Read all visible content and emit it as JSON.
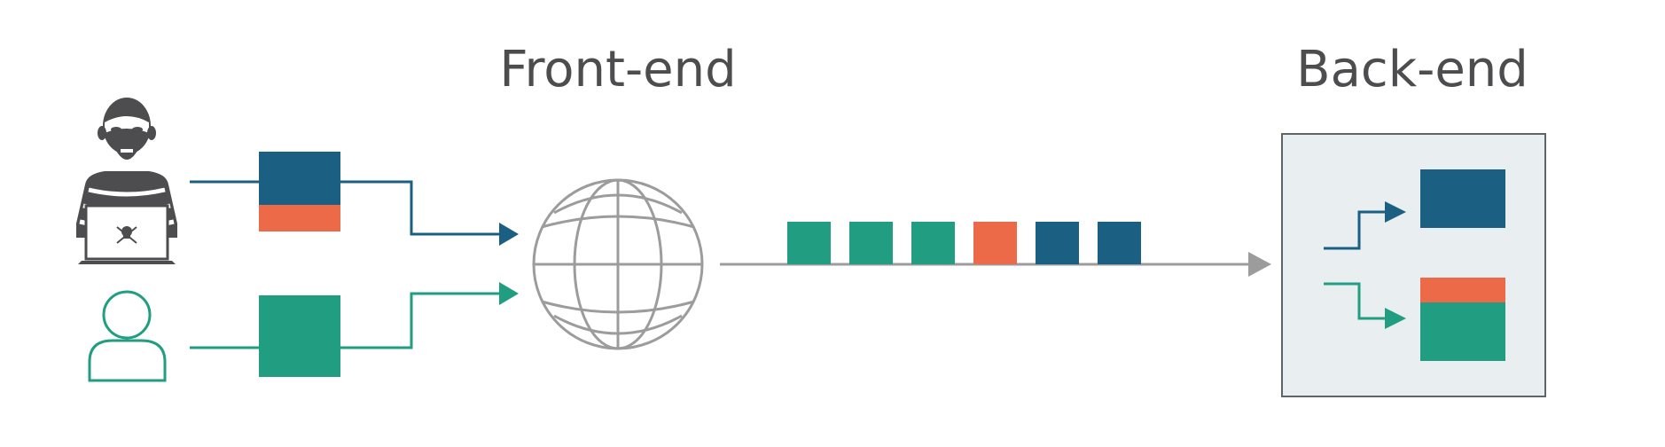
{
  "labels": {
    "frontend": "Front-end",
    "backend": "Back-end"
  },
  "colors": {
    "navy": "#1b5f82",
    "teal": "#219e81",
    "orange": "#ec6a47",
    "gray_line": "#9c9c9c",
    "dark": "#4d4d4f",
    "backend_bg": "#e9eef0",
    "backend_border": "#5f6469"
  },
  "icons": {
    "attacker": "hacker-with-laptop-icon",
    "laptop_mark": "skull-crossbones-icon",
    "user": "user-icon",
    "network": "globe-icon"
  },
  "request_queue": [
    "teal",
    "teal",
    "teal",
    "orange",
    "navy",
    "navy"
  ]
}
